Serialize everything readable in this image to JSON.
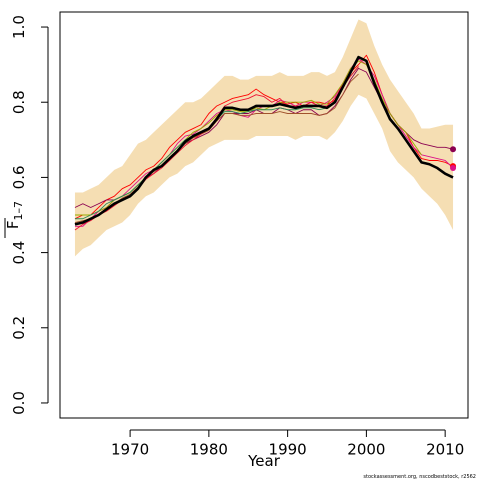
{
  "chart_data": {
    "type": "line",
    "xlabel": "Year",
    "ylabel": "F̅ 1–7",
    "ylabel_main": "F",
    "ylabel_sub": "1–7",
    "footer": "stockassessment.org, nscodbeststock, r2562",
    "xlim": [
      1961.1,
      2012.9
    ],
    "ylim": [
      -0.04,
      1.04
    ],
    "x_ticks": [
      1970,
      1980,
      1990,
      2000,
      2010
    ],
    "y_ticks": [
      0.0,
      0.2,
      0.4,
      0.6,
      0.8,
      1.0
    ],
    "years": [
      1963,
      1964,
      1965,
      1966,
      1967,
      1968,
      1969,
      1970,
      1971,
      1972,
      1973,
      1974,
      1975,
      1976,
      1977,
      1978,
      1979,
      1980,
      1981,
      1982,
      1983,
      1984,
      1985,
      1986,
      1987,
      1988,
      1989,
      1990,
      1991,
      1992,
      1993,
      1994,
      1995,
      1996,
      1997,
      1998,
      1999,
      2000,
      2001,
      2002,
      2003,
      2004,
      2005,
      2006,
      2007,
      2008,
      2009,
      2010,
      2011
    ],
    "band_color": "#f5deb3",
    "band_upper": [
      0.56,
      0.56,
      0.57,
      0.58,
      0.6,
      0.62,
      0.63,
      0.66,
      0.69,
      0.7,
      0.72,
      0.74,
      0.76,
      0.78,
      0.8,
      0.8,
      0.81,
      0.83,
      0.85,
      0.87,
      0.87,
      0.86,
      0.86,
      0.87,
      0.87,
      0.87,
      0.88,
      0.87,
      0.87,
      0.87,
      0.88,
      0.88,
      0.87,
      0.88,
      0.92,
      0.97,
      1.02,
      1.01,
      0.95,
      0.9,
      0.86,
      0.83,
      0.8,
      0.77,
      0.73,
      0.73,
      0.735,
      0.74,
      0.74
    ],
    "band_lower": [
      0.39,
      0.41,
      0.42,
      0.44,
      0.46,
      0.47,
      0.48,
      0.5,
      0.53,
      0.55,
      0.56,
      0.58,
      0.6,
      0.61,
      0.63,
      0.64,
      0.66,
      0.68,
      0.69,
      0.7,
      0.7,
      0.7,
      0.7,
      0.71,
      0.71,
      0.71,
      0.71,
      0.71,
      0.7,
      0.71,
      0.71,
      0.71,
      0.7,
      0.72,
      0.75,
      0.79,
      0.82,
      0.81,
      0.77,
      0.73,
      0.67,
      0.64,
      0.62,
      0.6,
      0.57,
      0.55,
      0.53,
      0.5,
      0.46
    ],
    "series": [
      {
        "color": "#000000",
        "width": 2.6,
        "start": 1963,
        "end_marker": false,
        "values": [
          0.475,
          0.48,
          0.49,
          0.5,
          0.515,
          0.53,
          0.54,
          0.55,
          0.57,
          0.6,
          0.62,
          0.63,
          0.65,
          0.67,
          0.695,
          0.71,
          0.72,
          0.73,
          0.755,
          0.785,
          0.785,
          0.78,
          0.78,
          0.79,
          0.79,
          0.79,
          0.795,
          0.79,
          0.785,
          0.79,
          0.79,
          0.79,
          0.785,
          0.8,
          0.84,
          0.88,
          0.92,
          0.91,
          0.85,
          0.8,
          0.755,
          0.73,
          0.7,
          0.67,
          0.64,
          0.635,
          0.625,
          0.61,
          0.6
        ]
      },
      {
        "color": "#ff0000",
        "width": 0.9,
        "start": 1963,
        "end_marker": true,
        "values": [
          0.49,
          0.5,
          0.5,
          0.52,
          0.54,
          0.55,
          0.57,
          0.58,
          0.6,
          0.62,
          0.63,
          0.65,
          0.68,
          0.7,
          0.72,
          0.73,
          0.74,
          0.77,
          0.79,
          0.8,
          0.81,
          0.815,
          0.82,
          0.835,
          0.82,
          0.81,
          0.8,
          0.795,
          0.8,
          0.79,
          0.8,
          0.8,
          0.795,
          0.805,
          0.85,
          0.88,
          0.9,
          0.925,
          0.88,
          0.82,
          0.77,
          0.74,
          0.72,
          0.68,
          0.65,
          0.645,
          0.645,
          0.64,
          0.63
        ]
      },
      {
        "color": "#dd1188",
        "width": 0.9,
        "start": 1963,
        "end_marker": true,
        "values": [
          0.47,
          0.47,
          0.49,
          0.51,
          0.52,
          0.54,
          0.55,
          0.57,
          0.59,
          0.61,
          0.62,
          0.64,
          0.66,
          0.69,
          0.71,
          0.715,
          0.73,
          0.75,
          0.77,
          0.78,
          0.775,
          0.765,
          0.76,
          0.78,
          0.79,
          0.79,
          0.805,
          0.8,
          0.79,
          0.8,
          0.8,
          0.79,
          0.8,
          0.815,
          0.85,
          0.89,
          0.915,
          0.9,
          0.87,
          0.82,
          0.77,
          0.74,
          0.71,
          0.68,
          0.66,
          0.655,
          0.65,
          0.645,
          0.625
        ]
      },
      {
        "color": "#8b0050",
        "width": 0.9,
        "start": 1963,
        "end_marker": true,
        "values": [
          0.52,
          0.53,
          0.52,
          0.53,
          0.54,
          0.54,
          0.55,
          0.56,
          0.58,
          0.6,
          0.61,
          0.63,
          0.65,
          0.67,
          0.69,
          0.7,
          0.71,
          0.72,
          0.74,
          0.77,
          0.77,
          0.77,
          0.77,
          0.78,
          0.77,
          0.77,
          0.785,
          0.78,
          0.77,
          0.78,
          0.78,
          0.765,
          0.77,
          0.79,
          0.82,
          0.86,
          0.89,
          0.88,
          0.84,
          0.8,
          0.77,
          0.74,
          0.72,
          0.7,
          0.69,
          0.685,
          0.68,
          0.68,
          0.675
        ]
      },
      {
        "color": "#9aaa00",
        "width": 0.9,
        "start": 1963,
        "end_marker": false,
        "values": [
          0.5,
          0.5,
          0.5,
          0.51,
          0.52,
          0.54,
          0.55,
          0.56,
          0.58,
          0.6,
          0.62,
          0.64,
          0.66,
          0.68,
          0.7,
          0.72,
          0.73,
          0.745,
          0.765,
          0.78,
          0.78,
          0.775,
          0.775,
          0.785,
          0.78,
          0.79,
          0.8,
          0.8,
          0.8,
          0.8,
          0.805,
          0.795,
          0.795,
          0.82,
          0.85,
          0.89,
          0.91,
          0.9,
          0.86,
          0.81,
          0.77,
          0.74,
          0.72,
          0.69,
          0.66
        ]
      },
      {
        "color": "#2e8b57",
        "width": 0.9,
        "start": 1963,
        "end_marker": false,
        "values": [
          0.49,
          0.49,
          0.5,
          0.51,
          0.53,
          0.54,
          0.55,
          0.56,
          0.58,
          0.6,
          0.62,
          0.64,
          0.66,
          0.68,
          0.7,
          0.71,
          0.72,
          0.73,
          0.755,
          0.775,
          0.775,
          0.77,
          0.775,
          0.78,
          0.78,
          0.78,
          0.785,
          0.78,
          0.78,
          0.785,
          0.785,
          0.78,
          0.785,
          0.8,
          0.84,
          0.87,
          0.895
        ]
      },
      {
        "color": "#a0522d",
        "width": 0.9,
        "start": 1963,
        "end_marker": false,
        "values": [
          0.48,
          0.485,
          0.49,
          0.5,
          0.515,
          0.53,
          0.545,
          0.555,
          0.575,
          0.6,
          0.615,
          0.63,
          0.65,
          0.67,
          0.69,
          0.705,
          0.715,
          0.725,
          0.75,
          0.77,
          0.77,
          0.765,
          0.765,
          0.77,
          0.77,
          0.77,
          0.775,
          0.77,
          0.77,
          0.77,
          0.77,
          0.765,
          0.77,
          0.785,
          0.82,
          0.855,
          0.875
        ]
      },
      {
        "color": "#ee1133",
        "width": 0.9,
        "start": 1963,
        "end_marker": false,
        "values": [
          0.46,
          0.475,
          0.485,
          0.5,
          0.51,
          0.525,
          0.54,
          0.55,
          0.57,
          0.595,
          0.61,
          0.625,
          0.645,
          0.665,
          0.685,
          0.7,
          0.715,
          0.73,
          0.76,
          0.79,
          0.8,
          0.805,
          0.81,
          0.82,
          0.815,
          0.8,
          0.81,
          0.79,
          0.79,
          0.79,
          0.8,
          0.79,
          0.79,
          0.81,
          0.84,
          0.87,
          0.895
        ]
      }
    ]
  }
}
